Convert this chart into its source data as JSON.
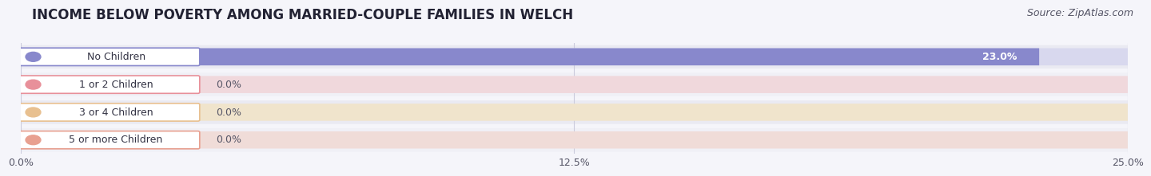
{
  "title": "INCOME BELOW POVERTY AMONG MARRIED-COUPLE FAMILIES IN WELCH",
  "source": "Source: ZipAtlas.com",
  "categories": [
    "No Children",
    "1 or 2 Children",
    "3 or 4 Children",
    "5 or more Children"
  ],
  "values": [
    23.0,
    0.0,
    0.0,
    0.0
  ],
  "bar_colors": [
    "#8888cc",
    "#e8909a",
    "#e8c090",
    "#e8a090"
  ],
  "track_colors": [
    "#d8d8ee",
    "#f0d8dc",
    "#f0e4cc",
    "#f0dcd8"
  ],
  "xlim_max": 25.0,
  "xticks": [
    0.0,
    12.5,
    25.0
  ],
  "xticklabels": [
    "0.0%",
    "12.5%",
    "25.0%"
  ],
  "bar_height": 0.62,
  "background_color": "#f5f5fa",
  "row_bg_even": "#eaeaf2",
  "row_bg_odd": "#f0f0f6",
  "title_fontsize": 12,
  "source_fontsize": 9,
  "label_fontsize": 9,
  "value_fontsize": 9,
  "value_label_inside_color": "#ffffff",
  "value_label_outside_color": "#555566"
}
